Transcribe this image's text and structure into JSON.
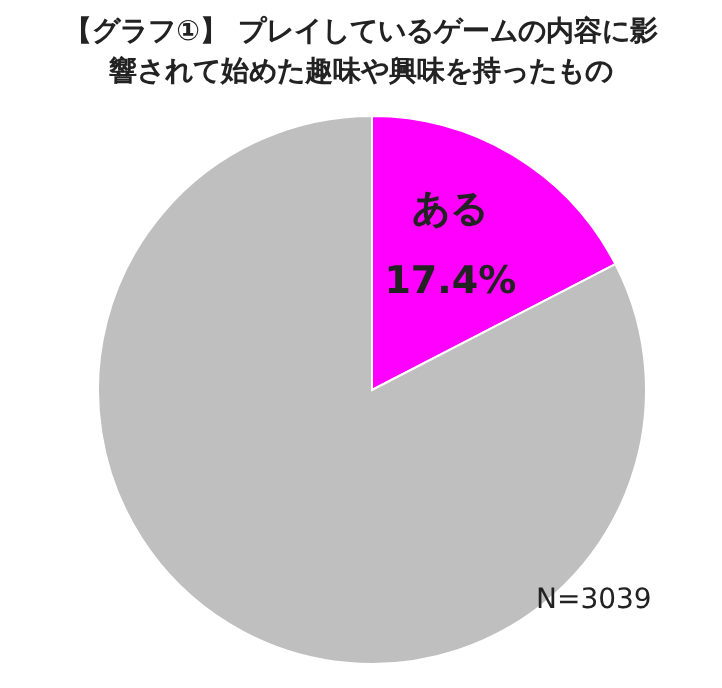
{
  "chart_data": {
    "type": "pie",
    "title": "【グラフ①】 プレイしているゲームの内容に影響されて始めた趣味や興味を持ったもの",
    "categories": [
      "ある",
      null
    ],
    "values": [
      17.4,
      82.6
    ],
    "colors": [
      "#ff00ff",
      "#bfbfbf"
    ],
    "value_labels": [
      "17.4%",
      null
    ],
    "annotations": [
      "N=3039"
    ]
  }
}
